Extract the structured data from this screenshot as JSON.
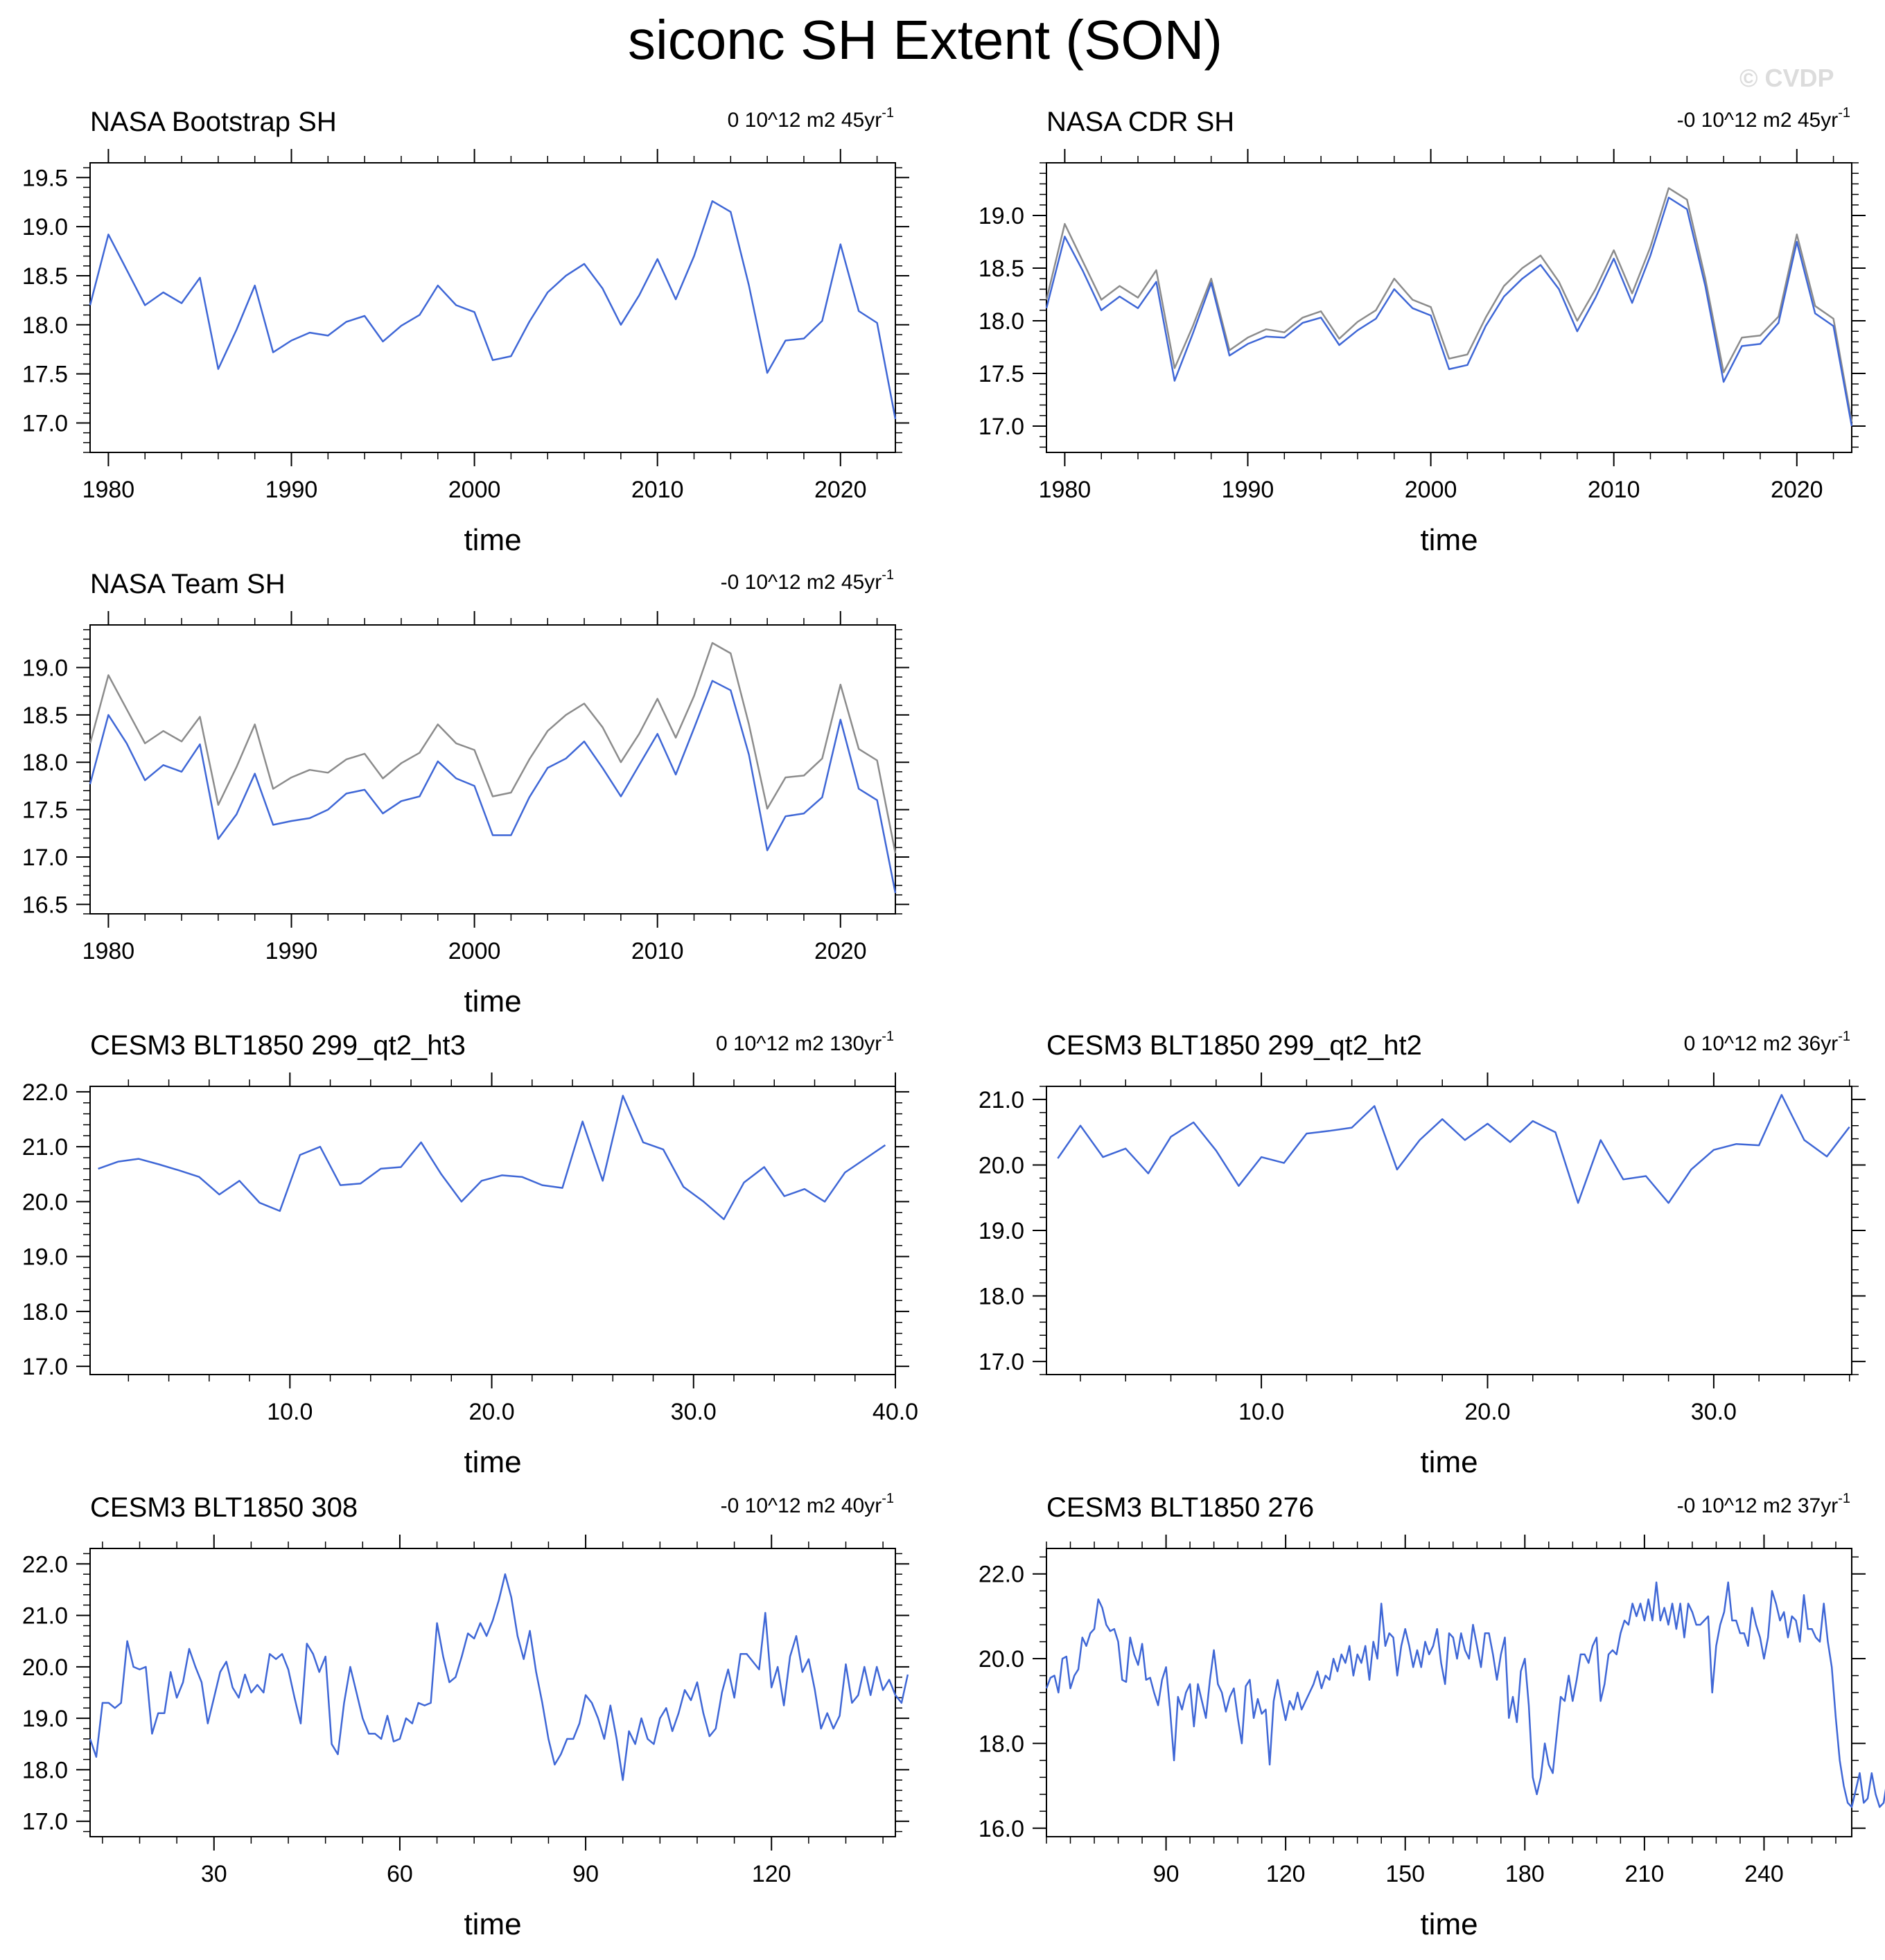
{
  "page": {
    "title": "siconc SH Extent (SON)",
    "copyright": "© CVDP"
  },
  "colors": {
    "series": "#3f67d6",
    "reference": "#8c8c8c",
    "axis": "#000000"
  },
  "chart_data": [
    {
      "type": "line",
      "title": "NASA Bootstrap SH",
      "trend": "0 10^12 m2 45yr",
      "trend_sup": "-1",
      "xlabel": "time",
      "xlim": [
        1979,
        2023
      ],
      "ylim": [
        16.7,
        19.65
      ],
      "xticks": [
        1980,
        1990,
        2000,
        2010,
        2020
      ],
      "xtick_labels": [
        "1980",
        "1990",
        "2000",
        "2010",
        "2020"
      ],
      "yticks": [
        17.0,
        17.5,
        18.0,
        18.5,
        19.0,
        19.5
      ],
      "ytick_labels": [
        "17.0",
        "17.5",
        "18.0",
        "18.5",
        "19.0",
        "19.5"
      ],
      "x_start": 1979,
      "x_step": 1,
      "series": [
        {
          "role": "model",
          "values": [
            18.2,
            18.92,
            18.56,
            18.2,
            18.33,
            18.22,
            18.48,
            17.55,
            17.95,
            18.4,
            17.72,
            17.84,
            17.92,
            17.89,
            18.03,
            18.09,
            17.83,
            17.99,
            18.1,
            18.4,
            18.2,
            18.13,
            17.64,
            17.68,
            18.03,
            18.33,
            18.5,
            18.62,
            18.37,
            18.0,
            18.3,
            18.67,
            18.26,
            18.7,
            19.26,
            19.15,
            18.4,
            17.51,
            17.84,
            17.86,
            18.04,
            18.82,
            18.14,
            18.02,
            17.04
          ]
        }
      ]
    },
    {
      "type": "line",
      "title": "NASA CDR SH",
      "trend": "-0 10^12 m2 45yr",
      "trend_sup": "-1",
      "xlabel": "time",
      "xlim": [
        1979,
        2023
      ],
      "ylim": [
        16.75,
        19.5
      ],
      "xticks": [
        1980,
        1990,
        2000,
        2010,
        2020
      ],
      "xtick_labels": [
        "1980",
        "1990",
        "2000",
        "2010",
        "2020"
      ],
      "yticks": [
        17.0,
        17.5,
        18.0,
        18.5,
        19.0
      ],
      "ytick_labels": [
        "17.0",
        "17.5",
        "18.0",
        "18.5",
        "19.0"
      ],
      "x_start": 1979,
      "x_step": 1,
      "series": [
        {
          "role": "reference",
          "values": [
            18.2,
            18.92,
            18.56,
            18.2,
            18.33,
            18.22,
            18.48,
            17.55,
            17.95,
            18.4,
            17.72,
            17.84,
            17.92,
            17.89,
            18.03,
            18.09,
            17.83,
            17.99,
            18.1,
            18.4,
            18.2,
            18.13,
            17.64,
            17.68,
            18.03,
            18.33,
            18.5,
            18.62,
            18.37,
            18.0,
            18.3,
            18.67,
            18.26,
            18.7,
            19.26,
            19.15,
            18.4,
            17.51,
            17.84,
            17.86,
            18.04,
            18.82,
            18.14,
            18.02,
            17.04
          ]
        },
        {
          "role": "model",
          "values": [
            18.12,
            18.8,
            18.47,
            18.1,
            18.23,
            18.12,
            18.37,
            17.43,
            17.88,
            18.36,
            17.67,
            17.78,
            17.85,
            17.84,
            17.98,
            18.03,
            17.77,
            17.91,
            18.02,
            18.3,
            18.12,
            18.05,
            17.54,
            17.58,
            17.95,
            18.23,
            18.4,
            18.53,
            18.3,
            17.9,
            18.22,
            18.59,
            18.17,
            18.62,
            19.17,
            19.06,
            18.33,
            17.42,
            17.76,
            17.78,
            17.98,
            18.75,
            18.07,
            17.95,
            17.0
          ]
        }
      ]
    },
    {
      "type": "line",
      "title": "NASA Team SH",
      "trend": "-0 10^12 m2 45yr",
      "trend_sup": "-1",
      "xlabel": "time",
      "xlim": [
        1979,
        2023
      ],
      "ylim": [
        16.4,
        19.45
      ],
      "xticks": [
        1980,
        1990,
        2000,
        2010,
        2020
      ],
      "xtick_labels": [
        "1980",
        "1990",
        "2000",
        "2010",
        "2020"
      ],
      "yticks": [
        16.5,
        17.0,
        17.5,
        18.0,
        18.5,
        19.0
      ],
      "ytick_labels": [
        "16.5",
        "17.0",
        "17.5",
        "18.0",
        "18.5",
        "19.0"
      ],
      "x_start": 1979,
      "x_step": 1,
      "series": [
        {
          "role": "reference",
          "values": [
            18.2,
            18.92,
            18.56,
            18.2,
            18.33,
            18.22,
            18.48,
            17.55,
            17.95,
            18.4,
            17.72,
            17.84,
            17.92,
            17.89,
            18.03,
            18.09,
            17.83,
            17.99,
            18.1,
            18.4,
            18.2,
            18.13,
            17.64,
            17.68,
            18.03,
            18.33,
            18.5,
            18.62,
            18.37,
            18.0,
            18.3,
            18.67,
            18.26,
            18.7,
            19.26,
            19.15,
            18.4,
            17.51,
            17.84,
            17.86,
            18.04,
            18.82,
            18.14,
            18.02,
            17.04
          ]
        },
        {
          "role": "model",
          "values": [
            17.77,
            18.5,
            18.2,
            17.81,
            17.97,
            17.9,
            18.19,
            17.19,
            17.45,
            17.88,
            17.34,
            17.38,
            17.41,
            17.5,
            17.67,
            17.71,
            17.46,
            17.59,
            17.64,
            18.01,
            17.83,
            17.75,
            17.23,
            17.23,
            17.63,
            17.94,
            18.04,
            18.22,
            17.94,
            17.64,
            17.97,
            18.3,
            17.87,
            18.36,
            18.86,
            18.76,
            18.08,
            17.07,
            17.43,
            17.46,
            17.63,
            18.45,
            17.72,
            17.6,
            16.62
          ]
        }
      ]
    },
    {
      "type": "line",
      "title": "CESM3 BLT1850 299_qt2_ht3",
      "trend": "0 10^12 m2 130yr",
      "trend_sup": "-1",
      "xlabel": "time",
      "xlim": [
        0.1,
        40.0
      ],
      "ylim": [
        16.85,
        22.1
      ],
      "xticks": [
        10,
        20,
        30,
        40
      ],
      "xtick_labels": [
        "10.0",
        "20.0",
        "30.0",
        "40.0"
      ],
      "yticks": [
        17.0,
        18.0,
        19.0,
        20.0,
        21.0,
        22.0
      ],
      "ytick_labels": [
        "17.0",
        "18.0",
        "19.0",
        "20.0",
        "21.0",
        "22.0"
      ],
      "x_start": 0.5,
      "x_step": 1,
      "series": [
        {
          "role": "model",
          "values": [
            20.6,
            20.73,
            20.78,
            20.68,
            20.57,
            20.45,
            20.13,
            20.38,
            19.98,
            19.83,
            20.85,
            21.0,
            20.3,
            20.33,
            20.6,
            20.63,
            21.08,
            20.5,
            20.0,
            20.38,
            20.48,
            20.45,
            20.3,
            20.25,
            21.46,
            20.38,
            21.93,
            21.08,
            20.95,
            20.27,
            20.0,
            19.68,
            20.35,
            20.63,
            20.1,
            20.23,
            20.0,
            20.53,
            20.78,
            21.03
          ]
        }
      ]
    },
    {
      "type": "line",
      "title": "CESM3 BLT1850 299_qt2_ht2",
      "trend": "0 10^12 m2 36yr",
      "trend_sup": "-1",
      "xlabel": "time",
      "xlim": [
        0.5,
        36.1
      ],
      "ylim": [
        16.8,
        21.2
      ],
      "xticks": [
        10,
        20,
        30
      ],
      "xtick_labels": [
        "10.0",
        "20.0",
        "30.0"
      ],
      "yticks": [
        17.0,
        18.0,
        19.0,
        20.0,
        21.0
      ],
      "ytick_labels": [
        "17.0",
        "18.0",
        "19.0",
        "20.0",
        "21.0"
      ],
      "x_start": 1.0,
      "x_step": 1,
      "series": [
        {
          "role": "model",
          "values": [
            20.1,
            20.6,
            20.12,
            20.25,
            19.87,
            20.43,
            20.65,
            20.22,
            19.68,
            20.12,
            20.03,
            20.48,
            20.52,
            20.57,
            20.9,
            19.93,
            20.38,
            20.7,
            20.38,
            20.63,
            20.35,
            20.67,
            20.5,
            19.42,
            20.38,
            19.78,
            19.83,
            19.42,
            19.93,
            20.23,
            20.32,
            20.3,
            21.07,
            20.38,
            20.13,
            20.58
          ]
        }
      ]
    },
    {
      "type": "line",
      "title": "CESM3 BLT1850 308",
      "trend": "-0 10^12 m2 40yr",
      "trend_sup": "-1",
      "xlabel": "time",
      "xlim": [
        10,
        140
      ],
      "ylim": [
        16.7,
        22.3
      ],
      "xticks": [
        30,
        60,
        90,
        120
      ],
      "xtick_labels": [
        "30",
        "60",
        "90",
        "120"
      ],
      "yticks": [
        17.0,
        18.0,
        19.0,
        20.0,
        21.0,
        22.0
      ],
      "ytick_labels": [
        "17.0",
        "18.0",
        "19.0",
        "20.0",
        "21.0",
        "22.0"
      ],
      "x_start": 10,
      "x_step": 1,
      "series": [
        {
          "role": "model",
          "values": [
            18.6,
            18.25,
            19.3,
            19.3,
            19.2,
            19.3,
            20.5,
            20.0,
            19.95,
            20.0,
            18.7,
            19.1,
            19.1,
            19.9,
            19.4,
            19.7,
            20.35,
            20.0,
            19.7,
            18.9,
            19.4,
            19.9,
            20.1,
            19.6,
            19.4,
            19.85,
            19.5,
            19.65,
            19.5,
            20.25,
            20.15,
            20.25,
            19.95,
            19.4,
            18.9,
            20.45,
            20.25,
            19.9,
            20.2,
            18.5,
            18.3,
            19.3,
            20.0,
            19.5,
            19.0,
            18.7,
            18.7,
            18.6,
            19.05,
            18.55,
            18.6,
            19.0,
            18.9,
            19.3,
            19.25,
            19.3,
            20.85,
            20.2,
            19.7,
            19.8,
            20.2,
            20.65,
            20.55,
            20.85,
            20.6,
            20.9,
            21.3,
            21.8,
            21.35,
            20.6,
            20.15,
            20.7,
            19.9,
            19.3,
            18.6,
            18.1,
            18.3,
            18.6,
            18.6,
            18.9,
            19.45,
            19.3,
            19.0,
            18.6,
            19.25,
            18.6,
            17.8,
            18.75,
            18.5,
            19.0,
            18.6,
            18.5,
            19.0,
            19.2,
            18.75,
            19.1,
            19.55,
            19.35,
            19.7,
            19.1,
            18.65,
            18.8,
            19.5,
            19.95,
            19.4,
            20.25,
            20.25,
            20.1,
            19.95,
            21.05,
            19.6,
            20.0,
            19.25,
            20.2,
            20.6,
            19.9,
            20.15,
            19.55,
            18.8,
            19.1,
            18.8,
            19.05,
            20.05,
            19.3,
            19.45,
            20.0,
            19.45,
            20.0,
            19.55,
            19.75,
            19.45,
            19.3,
            19.85
          ]
        }
      ]
    },
    {
      "type": "line",
      "title": "CESM3 BLT1850 276",
      "trend": "-0 10^12 m2 37yr",
      "trend_sup": "-1",
      "xlabel": "time",
      "xlim": [
        60,
        262
      ],
      "ylim": [
        15.8,
        22.6
      ],
      "xticks": [
        90,
        120,
        150,
        180,
        210,
        240
      ],
      "xtick_labels": [
        "90",
        "120",
        "150",
        "180",
        "210",
        "240"
      ],
      "yticks": [
        16.0,
        18.0,
        20.0,
        22.0
      ],
      "ytick_labels": [
        "16.0",
        "18.0",
        "20.0",
        "22.0"
      ],
      "x_start": 60,
      "x_step": 1,
      "series": [
        {
          "role": "model",
          "values": [
            19.3,
            19.55,
            19.6,
            19.2,
            20.0,
            20.05,
            19.3,
            19.6,
            19.75,
            20.5,
            20.3,
            20.6,
            20.7,
            21.4,
            21.2,
            20.8,
            20.65,
            20.7,
            20.4,
            19.5,
            19.45,
            20.5,
            20.1,
            19.85,
            20.35,
            19.5,
            19.55,
            19.2,
            18.9,
            19.5,
            19.8,
            18.8,
            17.6,
            19.1,
            18.8,
            19.2,
            19.4,
            18.4,
            19.4,
            19.0,
            18.6,
            19.5,
            20.2,
            19.4,
            19.2,
            18.75,
            19.1,
            19.3,
            18.6,
            18.0,
            19.35,
            19.5,
            18.6,
            19.05,
            18.7,
            18.8,
            17.5,
            19.0,
            19.5,
            19.0,
            18.55,
            19.0,
            18.8,
            19.2,
            18.8,
            19.0,
            19.2,
            19.4,
            19.7,
            19.3,
            19.6,
            19.5,
            20.0,
            19.7,
            20.1,
            19.9,
            20.3,
            19.6,
            20.1,
            19.9,
            20.3,
            19.5,
            20.4,
            20.0,
            21.3,
            20.3,
            20.6,
            20.5,
            19.6,
            20.3,
            20.7,
            20.3,
            19.8,
            20.2,
            19.8,
            20.4,
            20.1,
            20.3,
            20.7,
            19.9,
            19.4,
            20.6,
            20.5,
            20.0,
            20.6,
            20.2,
            20.0,
            20.8,
            20.3,
            19.8,
            20.6,
            20.6,
            20.1,
            19.5,
            20.1,
            20.5,
            18.6,
            19.1,
            18.5,
            19.7,
            20.0,
            18.9,
            17.2,
            16.8,
            17.2,
            18.0,
            17.5,
            17.3,
            18.2,
            19.1,
            19.0,
            19.6,
            19.0,
            19.5,
            20.1,
            20.1,
            19.9,
            20.3,
            20.5,
            19.0,
            19.4,
            20.1,
            20.2,
            20.1,
            20.6,
            20.9,
            20.8,
            21.3,
            21.0,
            21.3,
            20.9,
            21.4,
            20.9,
            21.8,
            20.9,
            21.2,
            20.8,
            21.3,
            20.7,
            21.3,
            20.5,
            21.3,
            21.1,
            20.8,
            20.8,
            20.9,
            21.0,
            19.2,
            20.3,
            20.8,
            21.1,
            21.8,
            20.9,
            20.9,
            20.6,
            20.6,
            20.3,
            21.2,
            20.8,
            20.5,
            20.0,
            20.5,
            21.6,
            21.3,
            20.9,
            21.1,
            20.5,
            21.0,
            20.9,
            20.4,
            21.5,
            20.7,
            20.7,
            20.5,
            20.4,
            21.3,
            20.4,
            19.8,
            18.6,
            17.6,
            17.0,
            16.6,
            16.5,
            16.9,
            17.3,
            16.6,
            16.7,
            17.3,
            16.8,
            16.5,
            16.6,
            17.2,
            18.2,
            19.9,
            19.7,
            20.1,
            20.6,
            20.2,
            20.4,
            20.6,
            21.3,
            20.5,
            20.7,
            20.6,
            20.4,
            19.9
          ]
        }
      ]
    }
  ]
}
